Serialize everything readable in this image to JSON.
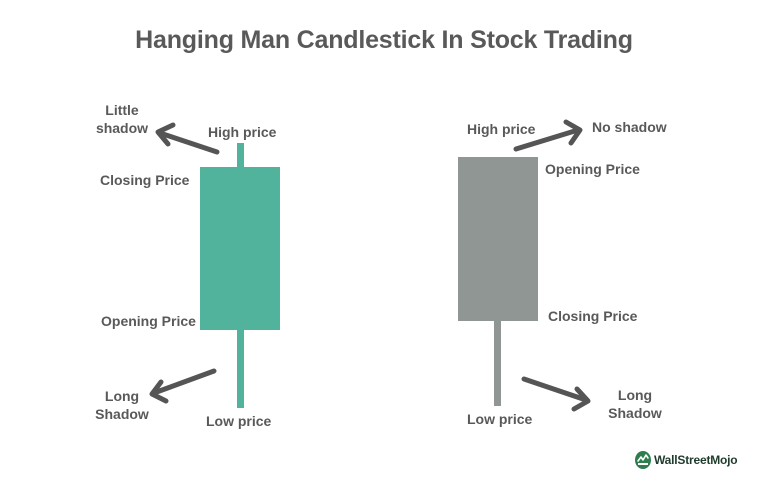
{
  "title": "Hanging Man Candlestick In Stock Trading",
  "colors": {
    "bullish_candle": "#51b39c",
    "bearish_candle": "#8f9693",
    "arrow": "#555555",
    "text": "#595959",
    "logo_green": "#2e7d4f"
  },
  "left_candle": {
    "high_label": "High price",
    "closing_label": "Closing Price",
    "opening_label": "Opening Price",
    "low_label": "Low price",
    "upper_shadow_label_line1": "Little",
    "upper_shadow_label_line2": "shadow",
    "lower_shadow_label_line1": "Long",
    "lower_shadow_label_line2": "Shadow"
  },
  "right_candle": {
    "high_label": "High price",
    "opening_label": "Opening Price",
    "closing_label": "Closing Price",
    "low_label": "Low price",
    "upper_shadow_label": "No shadow",
    "lower_shadow_label_line1": "Long",
    "lower_shadow_label_line2": "Shadow"
  },
  "logo": {
    "text": "WallStreetMojo",
    "icon": "wallstreetmojo-logo-icon"
  }
}
